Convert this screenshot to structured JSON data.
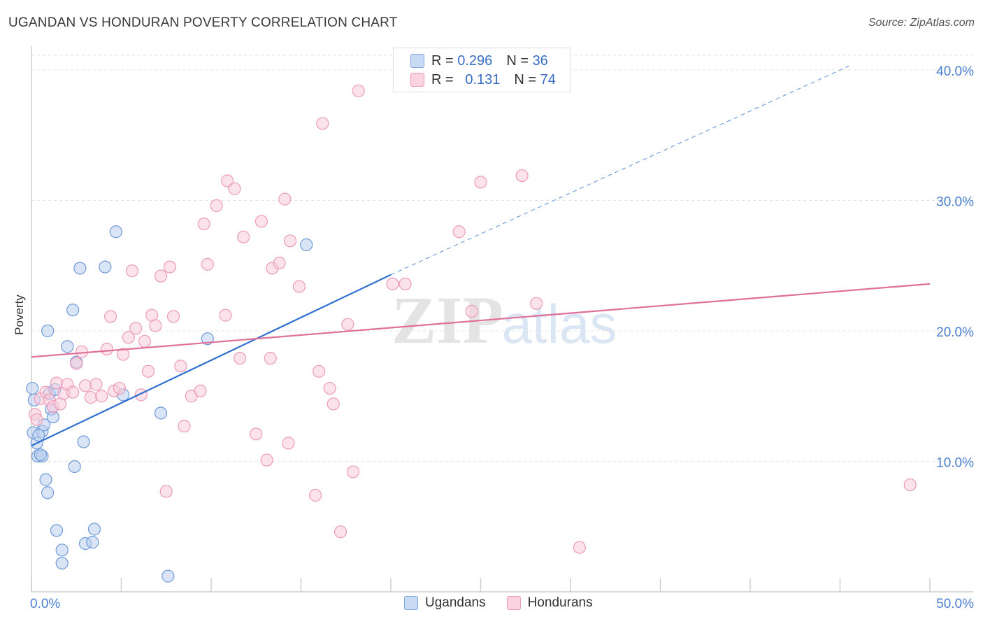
{
  "header": {
    "title": "UGANDAN VS HONDURAN POVERTY CORRELATION CHART",
    "source": "Source: ZipAtlas.com"
  },
  "watermark": {
    "zip": "ZIP",
    "atlas": "atlas"
  },
  "legend_top": {
    "rows": [
      {
        "r_label": "R =",
        "r_value": "0.296",
        "n_label": "N =",
        "n_value": "36",
        "color": "#aac6ef"
      },
      {
        "r_label": "R =",
        "r_value": "0.131",
        "n_label": "N =",
        "n_value": "74",
        "color": "#f6bcd0"
      }
    ]
  },
  "legend_bottom": [
    {
      "label": "Ugandans",
      "color": "#aac6ef"
    },
    {
      "label": "Hondurans",
      "color": "#f6bcd0"
    }
  ],
  "chart_data": {
    "type": "scatter",
    "xlabel": "",
    "ylabel": "Poverty",
    "xlim": [
      0,
      50
    ],
    "ylim": [
      0,
      41.5
    ],
    "x_tick_labels": [
      "0.0%",
      "50.0%"
    ],
    "y_tick_labels": [
      "10.0%",
      "20.0%",
      "30.0%",
      "40.0%"
    ],
    "y_ticks": [
      10,
      20,
      30,
      40
    ],
    "grid": "horizontal-dashed",
    "legend_position": "top-center",
    "series": [
      {
        "name": "Ugandans",
        "color": "#5b8fd6",
        "fill": "#aac6ef",
        "trend": {
          "x": [
            0,
            20
          ],
          "y": [
            11.2,
            24.3
          ],
          "extend_to_x": 45.5,
          "extend_to_y": 40.3
        },
        "points": [
          [
            0.05,
            15.6
          ],
          [
            0.15,
            14.7
          ],
          [
            0.1,
            12.2
          ],
          [
            0.3,
            11.4
          ],
          [
            0.35,
            10.4
          ],
          [
            0.6,
            10.4
          ],
          [
            0.6,
            12.3
          ],
          [
            0.7,
            12.8
          ],
          [
            0.8,
            8.6
          ],
          [
            0.9,
            7.6
          ],
          [
            0.9,
            20.0
          ],
          [
            1.0,
            15.2
          ],
          [
            1.1,
            14.0
          ],
          [
            1.2,
            13.4
          ],
          [
            1.3,
            15.5
          ],
          [
            1.4,
            4.7
          ],
          [
            1.7,
            3.2
          ],
          [
            1.7,
            2.2
          ],
          [
            2.0,
            18.8
          ],
          [
            2.3,
            21.6
          ],
          [
            2.4,
            9.6
          ],
          [
            2.5,
            17.6
          ],
          [
            2.7,
            24.8
          ],
          [
            2.9,
            11.5
          ],
          [
            3.0,
            3.7
          ],
          [
            3.4,
            3.8
          ],
          [
            3.5,
            4.8
          ],
          [
            4.1,
            24.9
          ],
          [
            4.7,
            27.6
          ],
          [
            5.1,
            15.1
          ],
          [
            7.2,
            13.7
          ],
          [
            7.6,
            1.2
          ],
          [
            9.8,
            19.4
          ],
          [
            15.3,
            26.6
          ],
          [
            0.4,
            12.0
          ],
          [
            0.5,
            10.5
          ]
        ]
      },
      {
        "name": "Hondurans",
        "color": "#e77aa0",
        "fill": "#f6bcd0",
        "trend": {
          "x": [
            0,
            50
          ],
          "y": [
            18.0,
            23.6
          ]
        },
        "points": [
          [
            0.2,
            13.6
          ],
          [
            0.3,
            13.2
          ],
          [
            0.5,
            14.8
          ],
          [
            0.8,
            15.3
          ],
          [
            1.0,
            14.7
          ],
          [
            1.2,
            14.2
          ],
          [
            1.4,
            16.0
          ],
          [
            1.6,
            14.4
          ],
          [
            1.8,
            15.2
          ],
          [
            2.0,
            15.9
          ],
          [
            2.3,
            15.3
          ],
          [
            2.5,
            17.5
          ],
          [
            2.8,
            18.4
          ],
          [
            3.0,
            15.8
          ],
          [
            3.3,
            14.9
          ],
          [
            3.6,
            15.9
          ],
          [
            3.9,
            15.0
          ],
          [
            4.2,
            18.6
          ],
          [
            4.4,
            21.1
          ],
          [
            4.6,
            15.4
          ],
          [
            4.9,
            15.6
          ],
          [
            5.1,
            18.2
          ],
          [
            5.4,
            19.5
          ],
          [
            5.6,
            24.6
          ],
          [
            5.8,
            20.2
          ],
          [
            6.1,
            15.1
          ],
          [
            6.3,
            19.2
          ],
          [
            6.5,
            16.9
          ],
          [
            6.7,
            21.2
          ],
          [
            6.9,
            20.4
          ],
          [
            7.2,
            24.2
          ],
          [
            7.5,
            7.7
          ],
          [
            7.7,
            24.9
          ],
          [
            7.9,
            21.1
          ],
          [
            8.3,
            17.3
          ],
          [
            8.5,
            12.7
          ],
          [
            8.9,
            15.0
          ],
          [
            9.4,
            15.4
          ],
          [
            9.6,
            28.2
          ],
          [
            9.8,
            25.1
          ],
          [
            10.3,
            29.6
          ],
          [
            10.8,
            21.2
          ],
          [
            10.9,
            31.5
          ],
          [
            11.3,
            30.9
          ],
          [
            11.6,
            17.9
          ],
          [
            11.8,
            27.2
          ],
          [
            12.5,
            12.1
          ],
          [
            12.8,
            28.4
          ],
          [
            13.1,
            10.1
          ],
          [
            13.3,
            17.9
          ],
          [
            13.4,
            24.8
          ],
          [
            13.8,
            25.2
          ],
          [
            14.1,
            30.1
          ],
          [
            14.3,
            11.4
          ],
          [
            14.4,
            26.9
          ],
          [
            14.9,
            23.4
          ],
          [
            15.8,
            7.4
          ],
          [
            16.0,
            16.9
          ],
          [
            16.2,
            35.9
          ],
          [
            16.6,
            15.6
          ],
          [
            16.8,
            14.4
          ],
          [
            17.2,
            4.6
          ],
          [
            17.6,
            20.5
          ],
          [
            17.9,
            9.2
          ],
          [
            18.2,
            38.4
          ],
          [
            20.1,
            23.6
          ],
          [
            20.8,
            23.6
          ],
          [
            23.8,
            27.6
          ],
          [
            24.5,
            21.5
          ],
          [
            25.0,
            31.4
          ],
          [
            27.3,
            31.9
          ],
          [
            28.1,
            22.1
          ],
          [
            30.5,
            3.4
          ],
          [
            48.9,
            8.2
          ]
        ]
      }
    ]
  }
}
